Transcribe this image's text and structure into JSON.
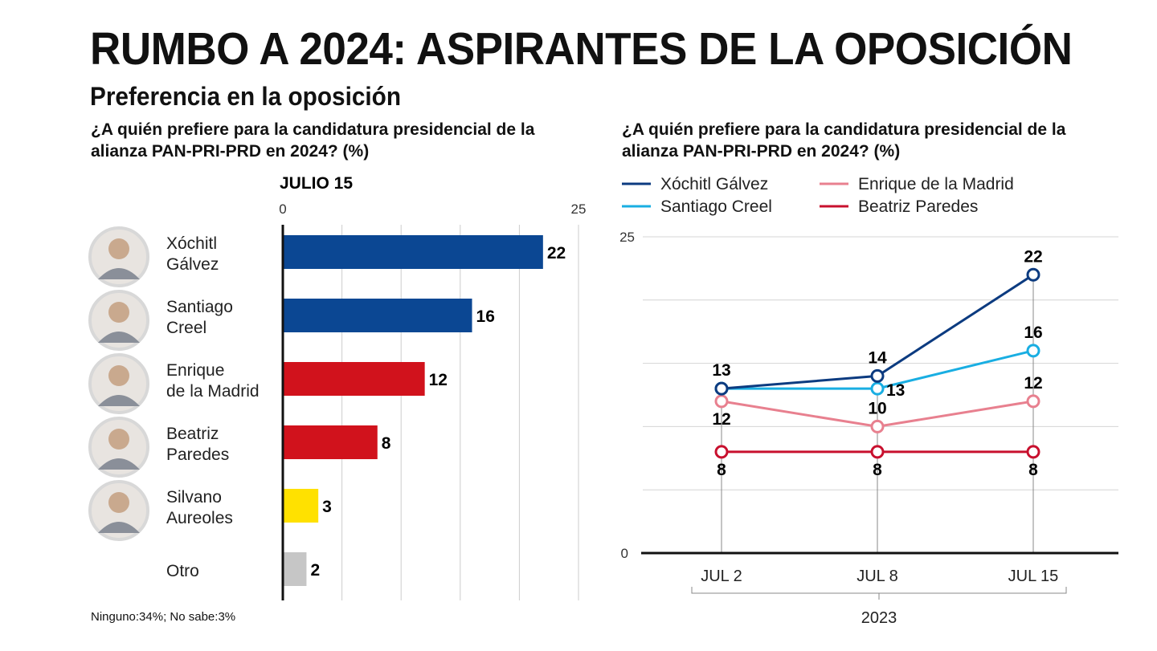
{
  "title": "RUMBO A 2024: ASPIRANTES DE LA OPOSICIÓN",
  "subtitle": "Preferencia en la oposición",
  "footnote": "Ninguno:34%; No sabe:3%",
  "chart_data": [
    {
      "type": "bar",
      "question": "¿A quién prefiere para la candidatura presidencial de la alianza PAN-PRI-PRD en 2024? (%)",
      "title": "JULIO 15",
      "xlim": [
        0,
        25
      ],
      "tick_labels": [
        "0",
        "25"
      ],
      "grid_step": 5,
      "categories": [
        {
          "name": [
            "Xóchitl",
            "Gálvez"
          ],
          "value": 22,
          "color": "#0b4793",
          "photo": true
        },
        {
          "name": [
            "Santiago",
            "Creel"
          ],
          "value": 16,
          "color": "#0b4793",
          "photo": true
        },
        {
          "name": [
            "Enrique",
            "de la Madrid"
          ],
          "value": 12,
          "color": "#d1121c",
          "photo": true
        },
        {
          "name": [
            "Beatriz",
            "Paredes"
          ],
          "value": 8,
          "color": "#d1121c",
          "photo": true
        },
        {
          "name": [
            "Silvano",
            "Aureoles"
          ],
          "value": 3,
          "color": "#ffe100",
          "photo": true
        },
        {
          "name": [
            "Otro"
          ],
          "value": 2,
          "color": "#c6c6c6",
          "photo": false
        }
      ]
    },
    {
      "type": "line",
      "question": "¿A quién prefiere para la candidatura presidencial de la alianza PAN-PRI-PRD en 2024? (%)",
      "x": [
        "JUL 2",
        "JUL 8",
        "JUL 15"
      ],
      "xlabel": "2023",
      "ylim": [
        0,
        25
      ],
      "y_tick_labels": [
        "0",
        "25"
      ],
      "grid_step": 5,
      "legend_position": "top",
      "series": [
        {
          "name": "Xóchitl Gálvez",
          "color": "#0c3b80",
          "values": [
            13,
            14,
            22
          ],
          "label_pos": [
            "above",
            "above",
            "above"
          ]
        },
        {
          "name": "Enrique de la Madrid",
          "color": "#e8808f",
          "values": [
            12,
            10,
            12
          ],
          "label_pos": [
            "below",
            "above",
            "above"
          ]
        },
        {
          "name": "Santiago Creel",
          "color": "#19aee2",
          "values": [
            13,
            13,
            16
          ],
          "label_pos": [
            "none",
            "right",
            "above"
          ]
        },
        {
          "name": "Beatriz Paredes",
          "color": "#c8102e",
          "values": [
            8,
            8,
            8
          ],
          "label_pos": [
            "below",
            "below",
            "below"
          ]
        }
      ]
    }
  ]
}
